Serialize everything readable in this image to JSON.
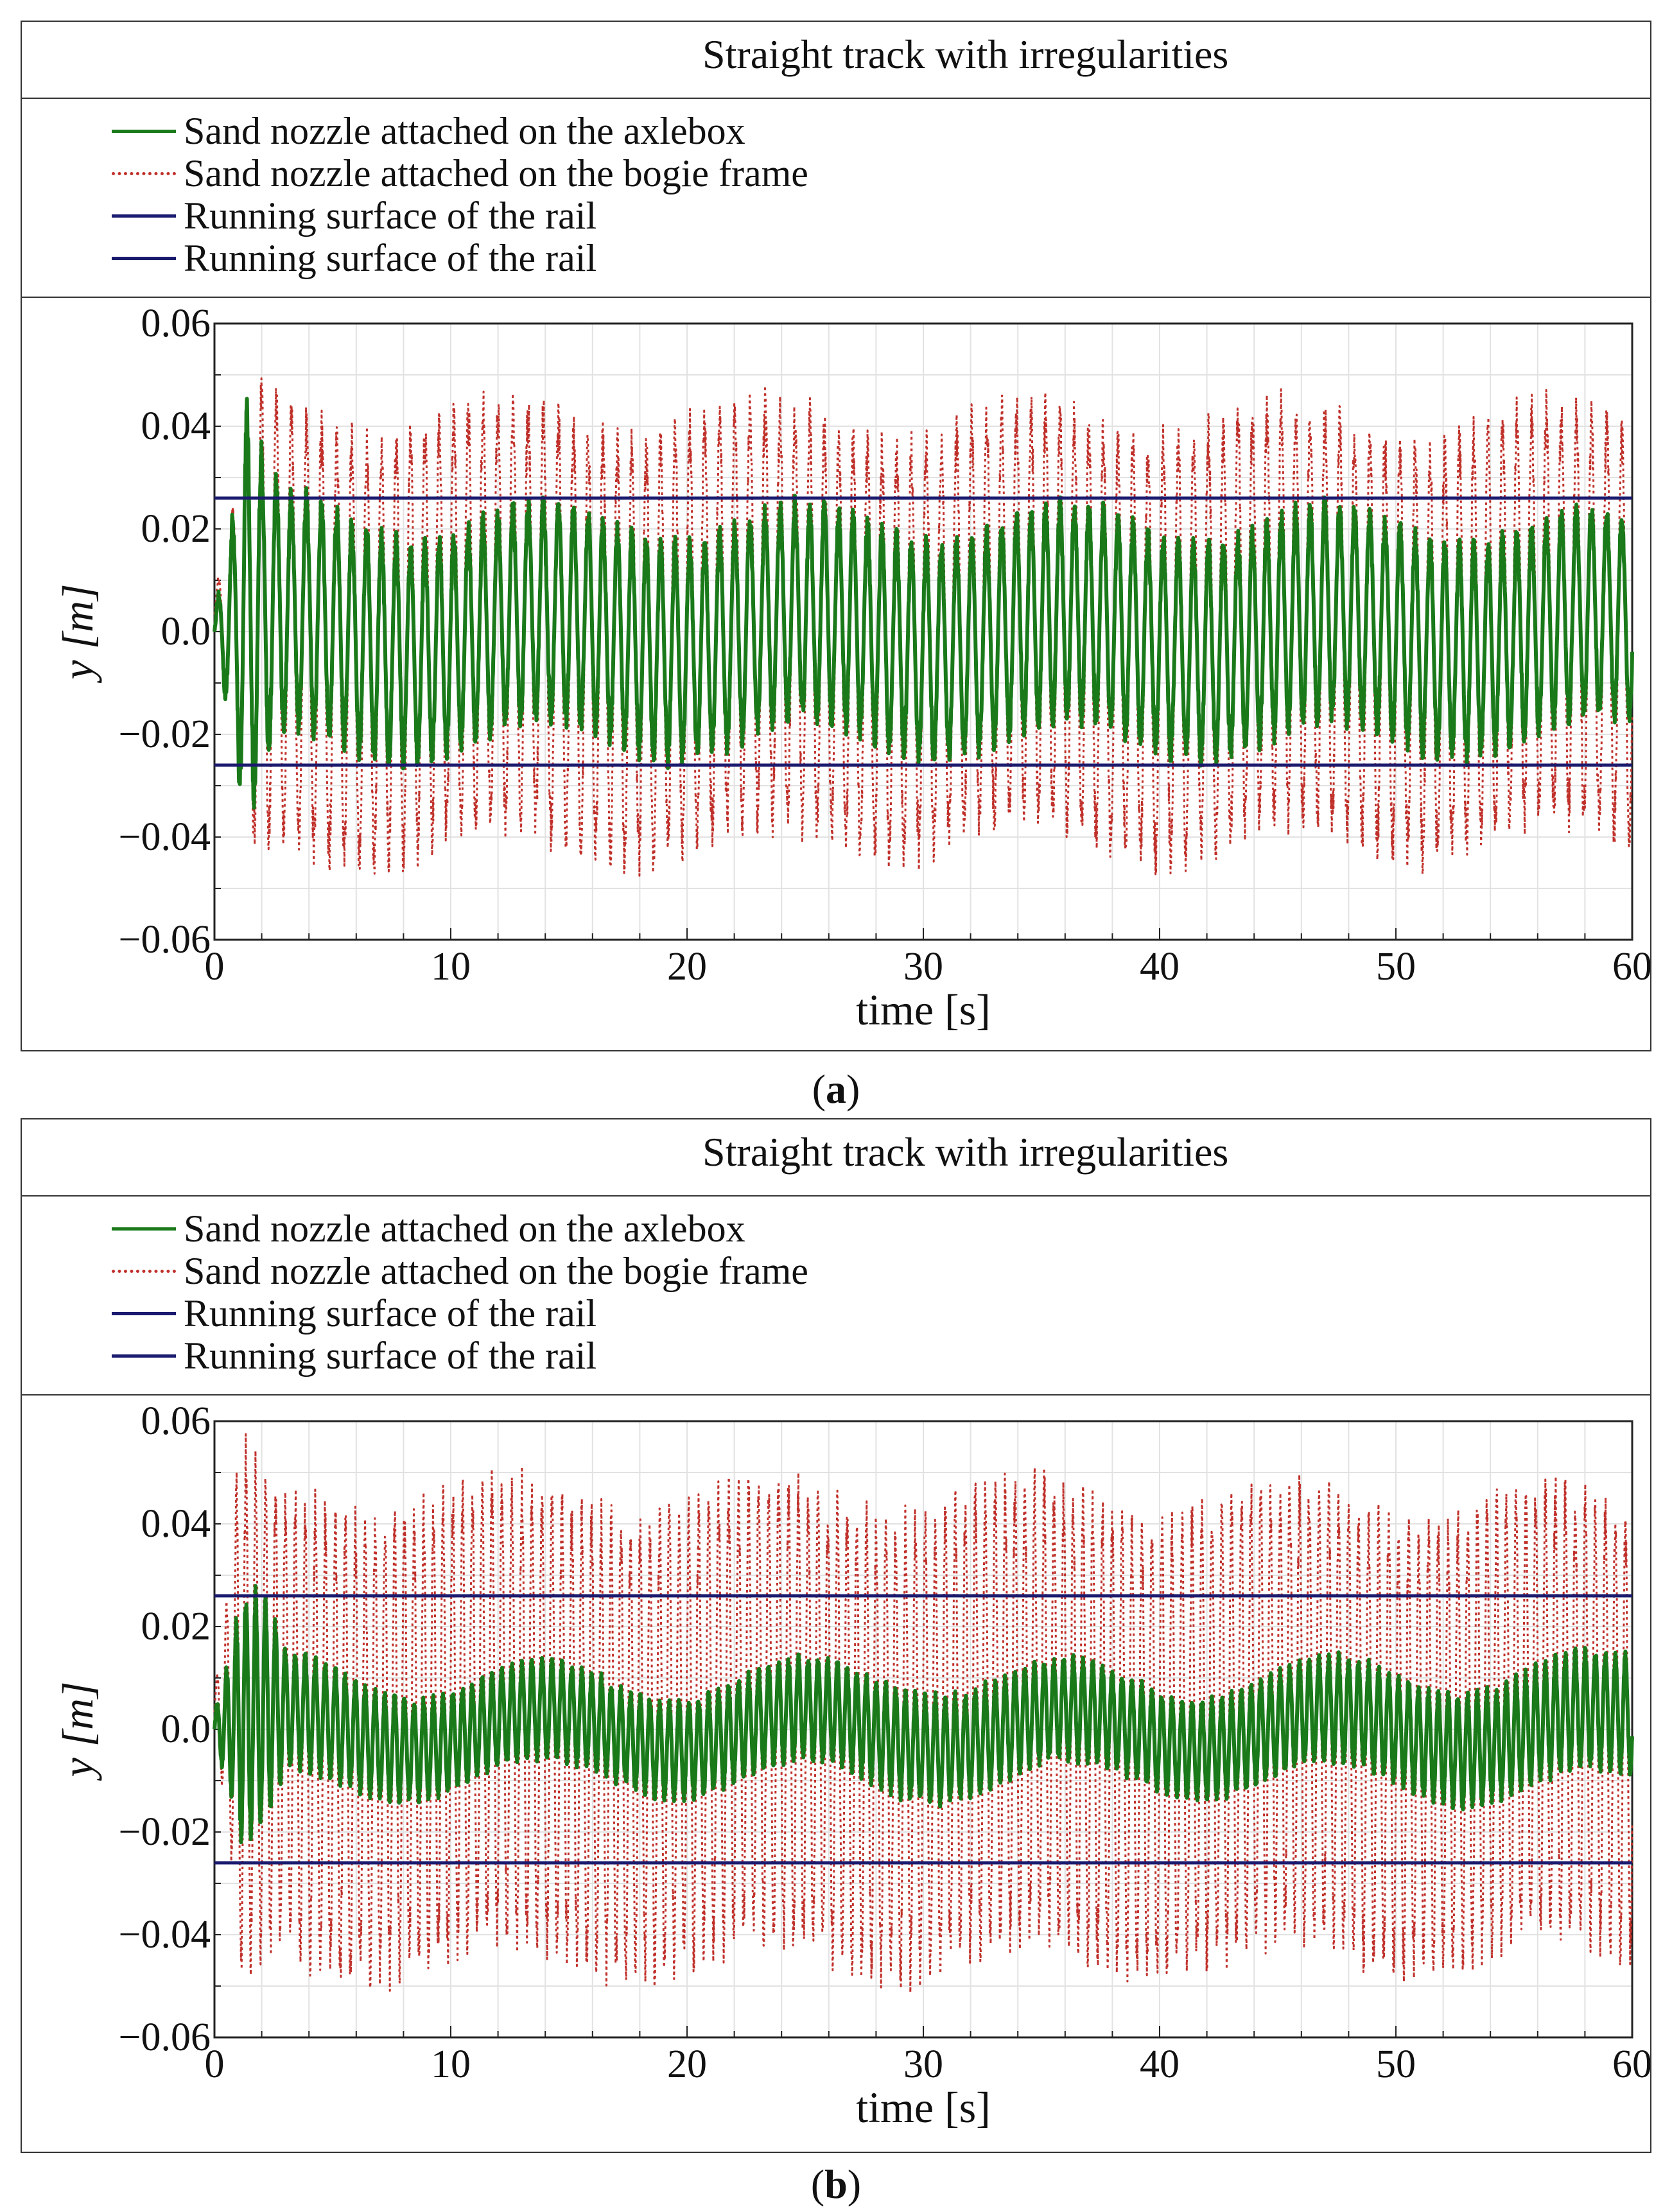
{
  "panels": [
    {
      "id": "a",
      "title": "Straight track with irregularities",
      "legend": [
        {
          "label": "Sand nozzle attached on the axlebox",
          "style": "solid",
          "color": "#1a7a1a"
        },
        {
          "label": "Sand nozzle attached on the bogie frame",
          "style": "dotted",
          "color": "#c0302a"
        },
        {
          "label": "Running surface of the rail",
          "style": "solid",
          "color": "#1a1a6e"
        },
        {
          "label": "Running surface of the rail",
          "style": "solid",
          "color": "#1a1a6e"
        }
      ],
      "caption_letter": "a"
    },
    {
      "id": "b",
      "title": "Straight track with irregularities",
      "legend": [
        {
          "label": "Sand nozzle attached on the axlebox",
          "style": "solid",
          "color": "#1a7a1a"
        },
        {
          "label": "Sand nozzle attached on the bogie frame",
          "style": "dotted",
          "color": "#c0302a"
        },
        {
          "label": "Running surface of the rail",
          "style": "solid",
          "color": "#1a1a6e"
        },
        {
          "label": "Running surface of the rail",
          "style": "solid",
          "color": "#1a1a6e"
        }
      ],
      "caption_letter": "b"
    }
  ],
  "chart_data": [
    {
      "type": "line",
      "title": "Straight track with irregularities",
      "xlabel": "time [s]",
      "ylabel": "y [m]",
      "xlim": [
        0,
        60
      ],
      "ylim": [
        -0.06,
        0.06
      ],
      "xticks": [
        0,
        10,
        20,
        30,
        40,
        50,
        60
      ],
      "yticks": [
        -0.06,
        -0.04,
        -0.02,
        0.0,
        0.02,
        0.04,
        0.06
      ],
      "ytick_labels": [
        "−0.06",
        "−0.04",
        "−0.02",
        "0.0",
        "0.02",
        "0.04",
        "0.06"
      ],
      "grid": true,
      "series": [
        {
          "name": "Sand nozzle attached on the axlebox",
          "kind": "oscillation",
          "color": "#1a7a1a",
          "style": "solid",
          "frequency_hz": 1.6,
          "amplitude_envelope": {
            "t": [
              0,
              0.8,
              1.3,
              2.2,
              3,
              10,
              20,
              30,
              40,
              50,
              60
            ],
            "amp": [
              0.003,
              0.02,
              0.039,
              0.027,
              0.022,
              0.02,
              0.02,
              0.02,
              0.02,
              0.02,
              0.019
            ]
          }
        },
        {
          "name": "Sand nozzle attached on the bogie frame",
          "kind": "oscillation",
          "color": "#c0302a",
          "style": "dotted",
          "frequency_hz": 1.6,
          "amplitude_envelope": {
            "t": [
              0,
              0.8,
              1.5,
              3,
              10,
              20,
              30,
              40,
              50,
              60
            ],
            "amp": [
              0.003,
              0.02,
              0.043,
              0.04,
              0.039,
              0.039,
              0.038,
              0.039,
              0.038,
              0.038
            ]
          }
        },
        {
          "name": "Running surface of the rail",
          "kind": "constant",
          "color": "#1a1a6e",
          "style": "solid",
          "value": 0.026
        },
        {
          "name": "Running surface of the rail",
          "kind": "constant",
          "color": "#1a1a6e",
          "style": "solid",
          "value": -0.026
        }
      ]
    },
    {
      "type": "line",
      "title": "Straight track with irregularities",
      "xlabel": "time [s]",
      "ylabel": "y [m]",
      "xlim": [
        0,
        60
      ],
      "ylim": [
        -0.06,
        0.06
      ],
      "xticks": [
        0,
        10,
        20,
        30,
        40,
        50,
        60
      ],
      "yticks": [
        -0.06,
        -0.04,
        -0.02,
        0.0,
        0.02,
        0.04,
        0.06
      ],
      "ytick_labels": [
        "−0.06",
        "−0.04",
        "−0.02",
        "0.0",
        "0.02",
        "0.04",
        "0.06"
      ],
      "grid": true,
      "series": [
        {
          "name": "Sand nozzle attached on the axlebox",
          "kind": "oscillation",
          "color": "#1a7a1a",
          "style": "solid",
          "frequency_hz": 2.4,
          "amplitude_envelope": {
            "t": [
              0,
              0.8,
              1.2,
              2.2,
              3,
              10,
              20,
              30,
              40,
              50,
              60
            ],
            "amp": [
              0.003,
              0.015,
              0.024,
              0.02,
              0.011,
              0.009,
              0.009,
              0.01,
              0.009,
              0.01,
              0.011
            ]
          }
        },
        {
          "name": "Sand nozzle attached on the bogie frame",
          "kind": "oscillation",
          "color": "#c0302a",
          "style": "dotted",
          "frequency_hz": 2.4,
          "amplitude_envelope": {
            "t": [
              0,
              0.8,
              1.0,
              1.6,
              3,
              10,
              20,
              30,
              40,
              50,
              60
            ],
            "amp": [
              0.003,
              0.03,
              0.051,
              0.045,
              0.042,
              0.042,
              0.042,
              0.042,
              0.042,
              0.041,
              0.041
            ]
          }
        },
        {
          "name": "Running surface of the rail",
          "kind": "constant",
          "color": "#1a1a6e",
          "style": "solid",
          "value": 0.026
        },
        {
          "name": "Running surface of the rail",
          "kind": "constant",
          "color": "#1a1a6e",
          "style": "solid",
          "value": -0.026
        }
      ]
    }
  ]
}
